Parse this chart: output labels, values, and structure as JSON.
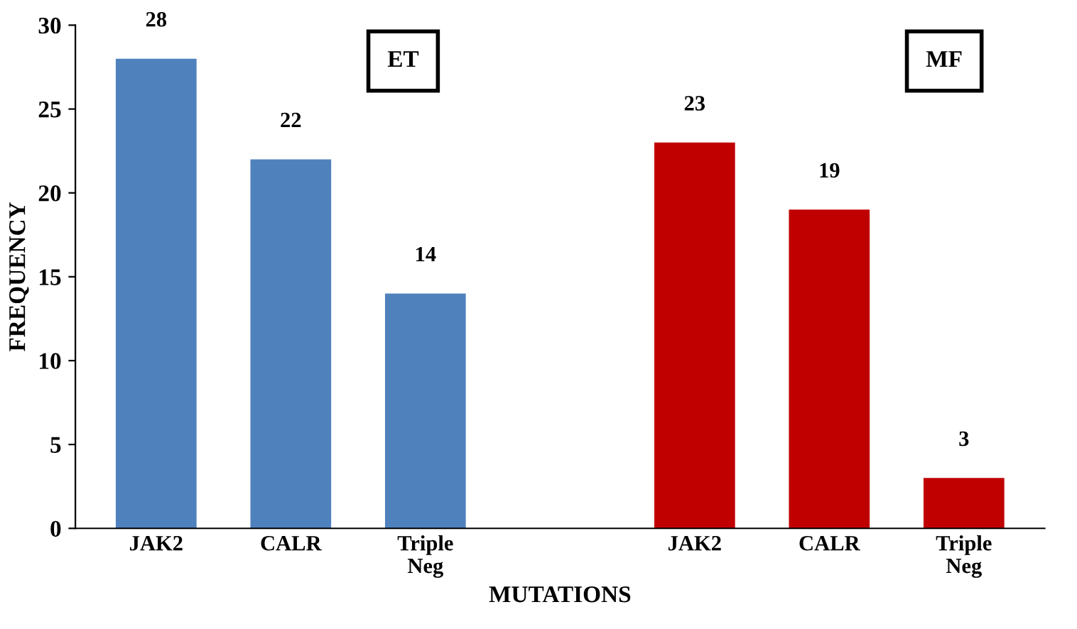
{
  "chart_data": {
    "type": "bar",
    "categories": [
      "JAK2",
      "CALR",
      "Triple\nNeg",
      null,
      "JAK2",
      "CALR",
      "Triple\nNeg"
    ],
    "values": [
      28,
      22,
      14,
      null,
      23,
      19,
      3
    ],
    "colors": [
      "#4f81bd",
      "#4f81bd",
      "#4f81bd",
      null,
      "#c00000",
      "#c00000",
      "#c00000"
    ],
    "annotations": [
      "ET",
      "MF"
    ],
    "xlabel": "MUTATIONS",
    "ylabel": "FREQUENCY",
    "ylim": [
      0,
      30
    ],
    "yticks": [
      0,
      5,
      10,
      15,
      20,
      25,
      30
    ],
    "grid": false,
    "data_labels": true
  }
}
